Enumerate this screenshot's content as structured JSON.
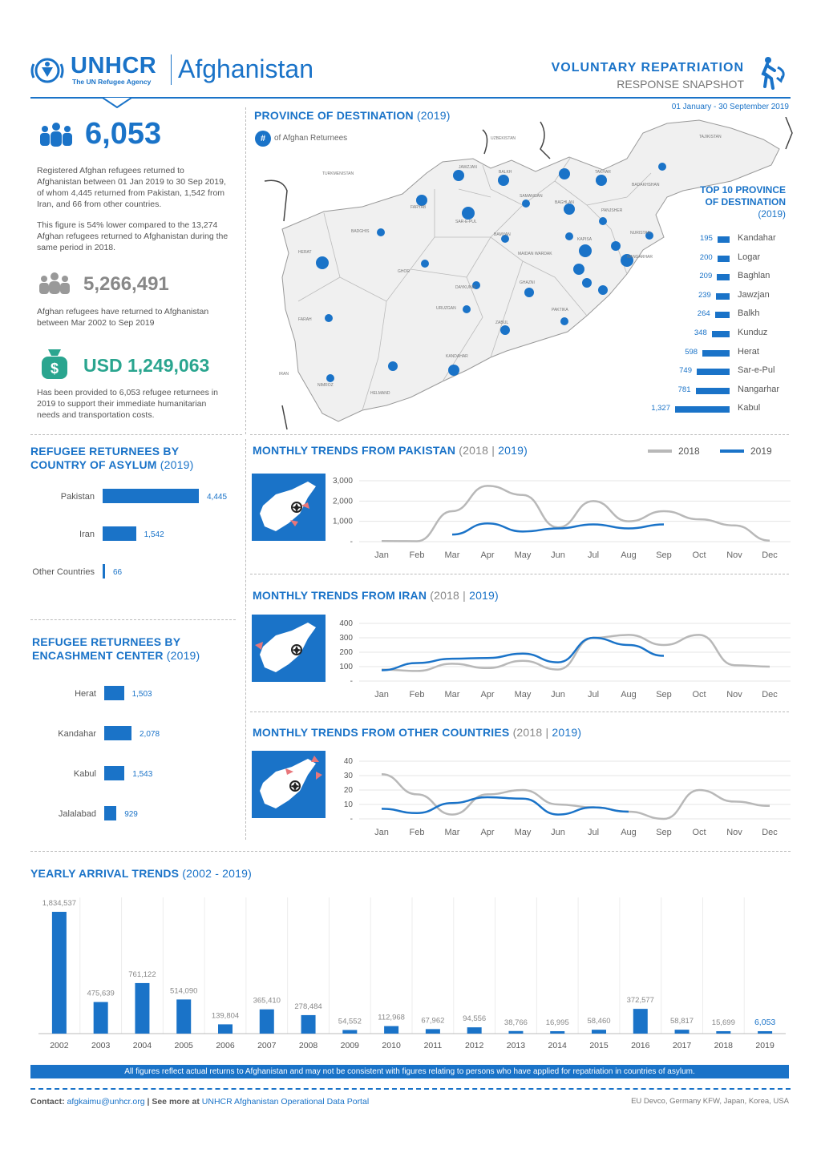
{
  "header": {
    "org_name": "UNHCR",
    "org_tagline": "The UN Refugee Agency",
    "country": "Afghanistan",
    "report_title": "VOLUNTARY REPATRIATION",
    "report_subtitle": "RESPONSE SNAPSHOT",
    "date_range": "01 January - 30 September 2019"
  },
  "summary": {
    "total_returnees": "6,053",
    "total_desc": "Registered Afghan refugees returned to Afghanistan between 01 Jan 2019 to 30 Sep 2019, of whom 4,445 returned from Pakistan, 1,542 from Iran, and 66 from other countries.",
    "compare_desc": "This figure is 54% lower compared to the 13,274 Afghan refugees returned to Afghanistan during the same period in 2018.",
    "cumulative_returnees": "5,266,491",
    "cumulative_desc": "Afghan refugees have returned to Afghanistan between Mar 2002 to Sep 2019",
    "usd_amount": "USD 1,249,063",
    "usd_desc": "Has been provided to 6,053 refugee returnees in 2019 to support their immediate humanitarian needs and transportation costs."
  },
  "map": {
    "title": "PROVINCE OF DESTINATION",
    "title_year": "(2019)",
    "legend_symbol": "#",
    "legend_label": "of Afghan Returnees",
    "top10_title_l1": "TOP 10 PROVINCE",
    "top10_title_l2": "OF DESTINATION",
    "top10_year": "(2019)",
    "top10": [
      {
        "value": "195",
        "num": 195,
        "name": "Kandahar"
      },
      {
        "value": "200",
        "num": 200,
        "name": "Logar"
      },
      {
        "value": "209",
        "num": 209,
        "name": "Baghlan"
      },
      {
        "value": "239",
        "num": 239,
        "name": "Jawzjan"
      },
      {
        "value": "264",
        "num": 264,
        "name": "Balkh"
      },
      {
        "value": "348",
        "num": 348,
        "name": "Kunduz"
      },
      {
        "value": "598",
        "num": 598,
        "name": "Herat"
      },
      {
        "value": "749",
        "num": 749,
        "name": "Sar-e-Pul"
      },
      {
        "value": "781",
        "num": 781,
        "name": "Nangarhar"
      },
      {
        "value": "1,327",
        "num": 1327,
        "name": "Kabul"
      }
    ]
  },
  "by_country": {
    "title": "REFUGEE RETURNEES BY COUNTRY OF ASYLUM",
    "year": "(2019)",
    "bars": [
      {
        "label": "Pakistan",
        "value": "4,445",
        "num": 4445
      },
      {
        "label": "Iran",
        "value": "1,542",
        "num": 1542
      },
      {
        "label": "Other Countries",
        "value": "66",
        "num": 66
      }
    ]
  },
  "by_center": {
    "title_l1": "REFUGEE RETURNEES BY",
    "title_l2": "ENCASHMENT CENTER",
    "year": "(2019)",
    "bars": [
      {
        "label": "Herat",
        "value": "1,503",
        "num": 1503
      },
      {
        "label": "Kandahar",
        "value": "2,078",
        "num": 2078
      },
      {
        "label": "Kabul",
        "value": "1,543",
        "num": 1543
      },
      {
        "label": "Jalalabad",
        "value": "929",
        "num": 929
      }
    ]
  },
  "legend": {
    "series_2018": "2018",
    "series_2019": "2019",
    "color_2018": "#b8b8b8",
    "color_2019": "#1a73c8"
  },
  "chart_data": [
    {
      "type": "line",
      "title": "MONTHLY TRENDS FROM PAKISTAN",
      "title_years_a": "(2018",
      "title_years_sep": "|",
      "title_years_b": "2019)",
      "categories": [
        "Jan",
        "Feb",
        "Mar",
        "Apr",
        "May",
        "Jun",
        "Jul",
        "Aug",
        "Sep",
        "Oct",
        "Nov",
        "Dec"
      ],
      "yticks": [
        "3,000",
        "2,000",
        "1,000",
        "-"
      ],
      "ylim": [
        0,
        3000
      ],
      "series": [
        {
          "name": "2018",
          "values": [
            30,
            20,
            1500,
            2750,
            2300,
            700,
            2000,
            1000,
            1500,
            1100,
            800,
            50
          ]
        },
        {
          "name": "2019",
          "values": [
            null,
            null,
            350,
            900,
            500,
            650,
            850,
            650,
            850,
            null,
            null,
            null
          ]
        }
      ]
    },
    {
      "type": "line",
      "title": "MONTHLY TRENDS FROM IRAN",
      "title_years_a": "(2018",
      "title_years_sep": "|",
      "title_years_b": "2019)",
      "categories": [
        "Jan",
        "Feb",
        "Mar",
        "Apr",
        "May",
        "Jun",
        "Jul",
        "Aug",
        "Sep",
        "Oct",
        "Nov",
        "Dec"
      ],
      "yticks": [
        "400",
        "300",
        "200",
        "100",
        "-"
      ],
      "ylim": [
        0,
        400
      ],
      "series": [
        {
          "name": "2018",
          "values": [
            80,
            70,
            120,
            90,
            140,
            80,
            300,
            320,
            250,
            320,
            110,
            100
          ]
        },
        {
          "name": "2019",
          "values": [
            75,
            125,
            155,
            160,
            190,
            130,
            300,
            250,
            175,
            null,
            null,
            null
          ]
        }
      ]
    },
    {
      "type": "line",
      "title": "MONTHLY TRENDS FROM OTHER COUNTRIES",
      "title_years_a": "(2018",
      "title_years_sep": "|",
      "title_years_b": "2019)",
      "categories": [
        "Jan",
        "Feb",
        "Mar",
        "Apr",
        "May",
        "Jun",
        "Jul",
        "Aug",
        "Sep",
        "Oct",
        "Nov",
        "Dec"
      ],
      "yticks": [
        "40",
        "30",
        "20",
        "10",
        "-"
      ],
      "ylim": [
        0,
        40
      ],
      "series": [
        {
          "name": "2018",
          "values": [
            31,
            17,
            3,
            17,
            20,
            10,
            8,
            5,
            0,
            20,
            12,
            9
          ]
        },
        {
          "name": "2019",
          "values": [
            7,
            4,
            11,
            15,
            14,
            3,
            8,
            5,
            null,
            null,
            null,
            null
          ]
        }
      ]
    },
    {
      "type": "bar",
      "title": "YEARLY ARRIVAL TRENDS",
      "title_years": "(2002 - 2019)",
      "categories": [
        "2002",
        "2003",
        "2004",
        "2005",
        "2006",
        "2007",
        "2008",
        "2009",
        "2010",
        "2011",
        "2012",
        "2013",
        "2014",
        "2015",
        "2016",
        "2017",
        "2018",
        "2019"
      ],
      "values": [
        1834537,
        475639,
        761122,
        514090,
        139804,
        365410,
        278484,
        54552,
        112968,
        67962,
        94556,
        38766,
        16995,
        58460,
        372577,
        58817,
        15699,
        6053
      ],
      "labels": [
        "1,834,537",
        "475,639",
        "761,122",
        "514,090",
        "139,804",
        "365,410",
        "278,484",
        "54,552",
        "112,968",
        "67,962",
        "94,556",
        "38,766",
        "16,995",
        "58,460",
        "372,577",
        "58,817",
        "15,699",
        "6,053"
      ]
    }
  ],
  "footer": {
    "disclaimer": "All figures reflect actual returns to Afghanistan and may not be consistent with figures relating to persons who have applied for repatriation in countries of asylum.",
    "contact_label": "Contact:",
    "contact_email": "afgkaimu@unhcr.org",
    "see_more_label": "| See more at",
    "portal_link": "UNHCR Afghanistan Operational Data Portal",
    "donors": "EU Devco, Germany KFW, Japan, Korea, USA"
  }
}
